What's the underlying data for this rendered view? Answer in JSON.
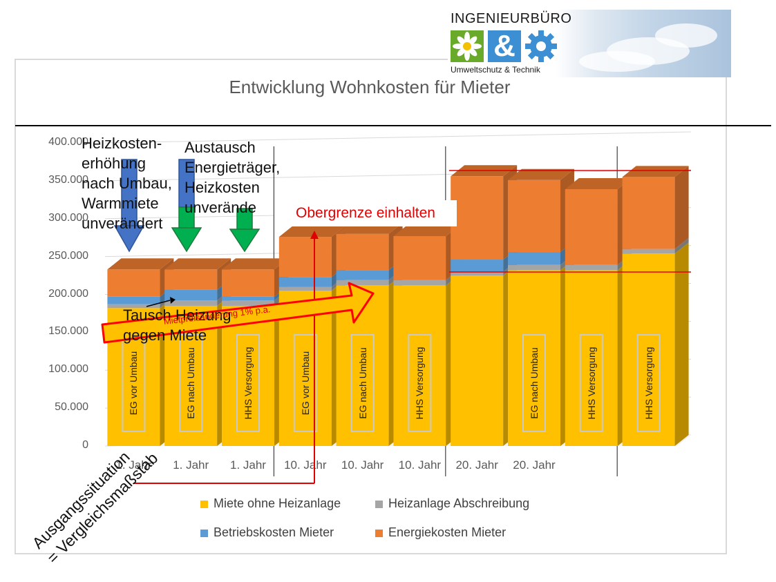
{
  "title": "Entwicklung Wohnkosten für Mieter",
  "logo": {
    "name": "INGENIEURBÜRO",
    "symbol": "&",
    "subtitle": "Umweltschutz & Technik"
  },
  "chart_data": {
    "type": "bar",
    "stacked": true,
    "three_d": true,
    "ylim": [
      0,
      400000
    ],
    "yticks": [
      "0",
      "50.000",
      "100.000",
      "150.000",
      "200.000",
      "250.000",
      "300.000",
      "350.000",
      "400.000"
    ],
    "yticks_values": [
      0,
      50000,
      100000,
      150000,
      200000,
      250000,
      300000,
      350000,
      400000
    ],
    "x_tick_labels": [
      "1. Jahr",
      "1. Jahr",
      "1. Jahr",
      "10. Jahr",
      "10. Jahr",
      "10. Jahr",
      "20. Jahr",
      "20. Jahr",
      "",
      ""
    ],
    "bar_inner_labels": [
      "EG vor Umbau",
      "EG nach Umbau",
      "HHS Versorgung",
      "EG vor Umbau",
      "EG nach Umbau",
      "HHS Versorgung",
      "",
      "EG nach Umbau",
      "HHS Versorgung",
      "HHS Versorgung"
    ],
    "series": [
      {
        "name": "Miete ohne Heizanlage",
        "color": "#ffc000",
        "values": [
          182000,
          185000,
          185000,
          205000,
          212000,
          212000,
          225000,
          232000,
          232000,
          254000
        ]
      },
      {
        "name": "Heizanlage Abschreibung",
        "color": "#a5a5a5",
        "values": [
          5000,
          7000,
          7000,
          5000,
          7000,
          7000,
          5000,
          7000,
          7000,
          6000
        ]
      },
      {
        "name": "Betriebskosten Mieter",
        "color": "#5b9bd5",
        "values": [
          10000,
          14000,
          5000,
          13000,
          13000,
          0,
          16000,
          17000,
          0,
          0
        ]
      },
      {
        "name": "Energiekosten Mieter",
        "color": "#ed7d31",
        "values": [
          36000,
          27000,
          36000,
          53000,
          48000,
          58000,
          110000,
          95000,
          100000,
          95000
        ]
      }
    ],
    "legend_position": "bottom",
    "gridlines": true
  },
  "annotations": {
    "heizkosten": "Heizkosten-\nerhöhung\nnach Umbau,\nWarmmiete\nunverändert",
    "austausch": "Austausch\nEnergieträger,\nHeizkosten\nunverände",
    "tausch": "Tausch Heizung\ngegen Miete",
    "mietpreis": "Mietpreisänderung 1% p.a.",
    "obergrenze": "Obergrenze einhalten",
    "ausgang": "Ausgangssituation\n= Vergleichsmaßstab"
  },
  "colors": {
    "arrow_blue": "#4472c4",
    "arrow_green": "#00b050",
    "arrow_red": "#ff0000"
  }
}
